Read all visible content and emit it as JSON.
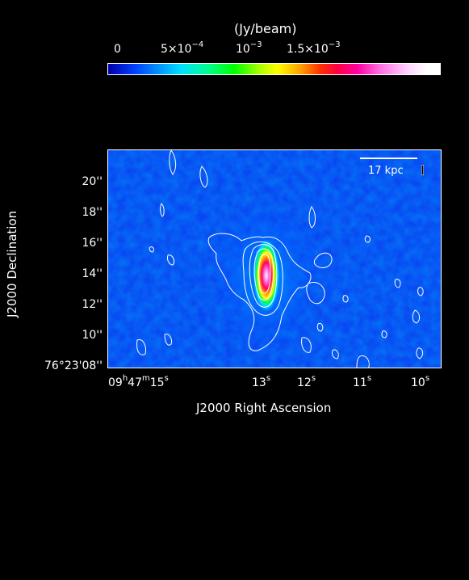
{
  "colorbar": {
    "unit": "(Jy/beam)",
    "ticks": [
      {
        "base": "0",
        "exp": ""
      },
      {
        "base": "5×10",
        "exp": "−4"
      },
      {
        "base": "10",
        "exp": "−3"
      },
      {
        "base": "1.5×10",
        "exp": "−3"
      }
    ]
  },
  "scalebar": {
    "label": "17 kpc"
  },
  "yaxis": {
    "title": "J2000 Declination",
    "ticks": [
      "20''",
      "18''",
      "16''",
      "14''",
      "12''",
      "10''",
      "76°23'08''"
    ]
  },
  "xaxis": {
    "title": "J2000 Right Ascension",
    "first_tick": {
      "h": "09",
      "m": "47",
      "s": "15"
    },
    "ticks": [
      {
        "v": "13",
        "u": "s"
      },
      {
        "v": "12",
        "u": "s"
      },
      {
        "v": "11",
        "u": "s"
      },
      {
        "v": "10",
        "u": "s"
      }
    ]
  }
}
